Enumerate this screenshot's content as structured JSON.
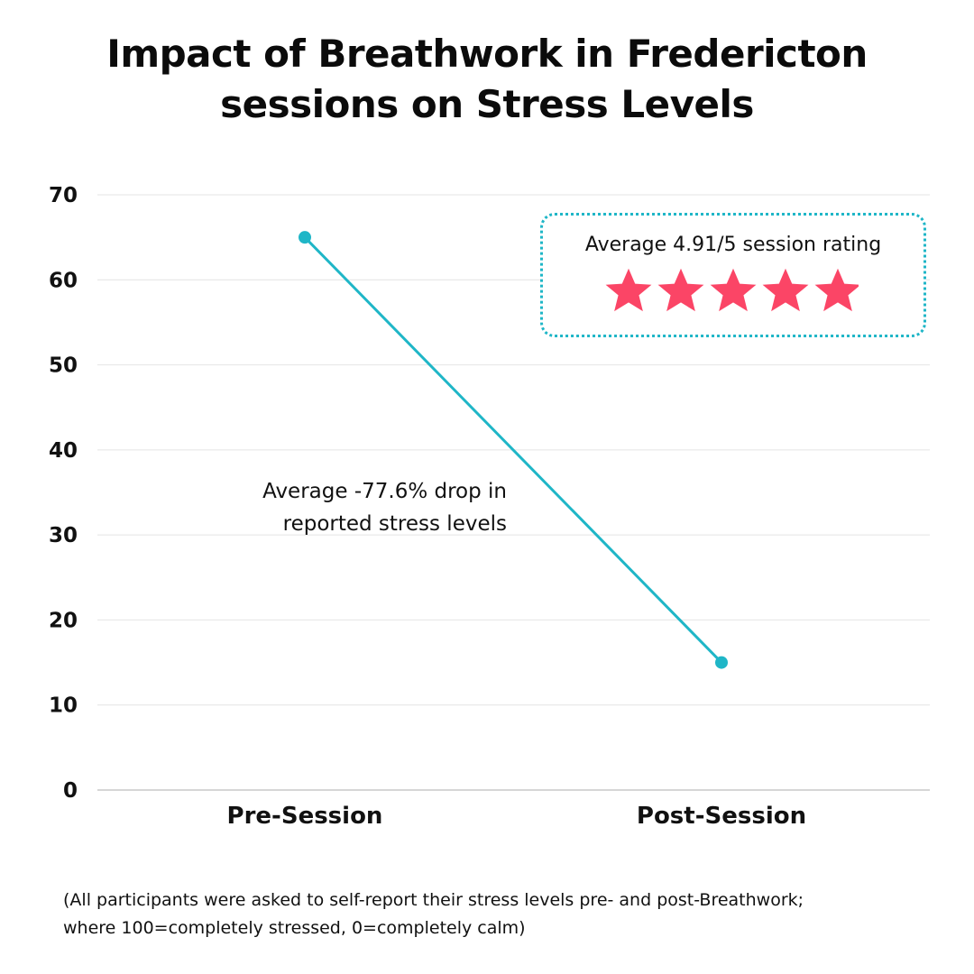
{
  "title_lines": [
    "Impact of Breathwork in Fredericton",
    "sessions on Stress Levels"
  ],
  "chart_data": {
    "type": "line",
    "title": "Impact of Breathwork in Fredericton sessions on Stress Levels",
    "categories": [
      "Pre-Session",
      "Post-Session"
    ],
    "series": [
      {
        "values": [
          65,
          15
        ]
      }
    ],
    "yticks": [
      "0",
      "10",
      "20",
      "30",
      "40",
      "50",
      "60",
      "70"
    ],
    "ylim": [
      0,
      70
    ],
    "grid": true,
    "line_color": "#1fb6c7",
    "annotation_lines": [
      "Average -77.6% drop in",
      "reported stress levels"
    ]
  },
  "rating": {
    "text": "Average 4.91/5 session rating",
    "value": 4.91,
    "max": 5,
    "star_color": "#fb4566",
    "border_color": "#1fb6c7"
  },
  "footnote_lines": [
    "(All participants were asked to self-report their stress levels pre- and post-Breathwork;",
    "where 100=completely stressed, 0=completely calm)"
  ]
}
